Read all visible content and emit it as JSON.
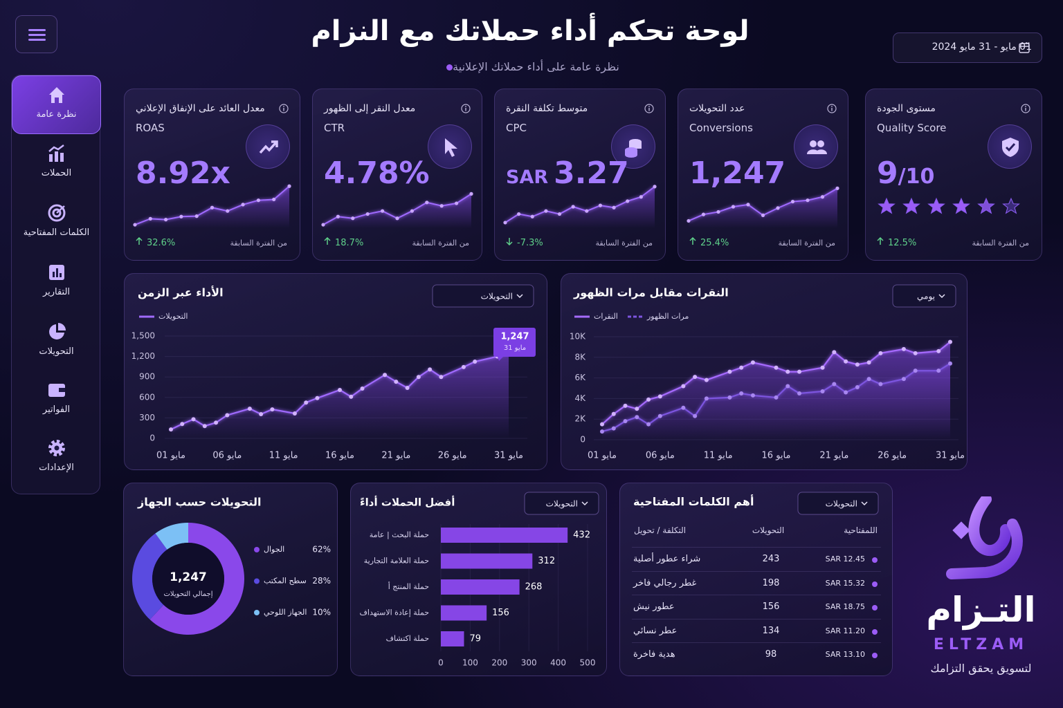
{
  "header": {
    "title": "لوحة تحكم أداء حملاتك مع النزام",
    "subtitle": "نظرة عامة على أداء حملاتك الإعلانية",
    "date_range": "01 مايو - 31 مايو 2024"
  },
  "sidebar": {
    "items": [
      "نظرة عامة",
      "الحملات",
      "الكلمات المفتاحية",
      "التقارير",
      "التحويلات",
      "الفواتير",
      "الإعدادات"
    ],
    "active": 0
  },
  "kpi_note": "من الفترة السابقة",
  "kpis": [
    {
      "label": "معدل العائد على الإنفاق الإعلاني",
      "label_en": "ROAS",
      "value": "8.92x",
      "change": "32.6%",
      "spark": {
        "values": [
          8,
          22,
          20,
          27,
          28,
          48,
          40,
          55,
          65,
          67,
          98
        ],
        "ylim": [
          0,
          100
        ]
      }
    },
    {
      "label": "معدل النقر إلى الظهور",
      "label_en": "CTR",
      "value": "4.78%",
      "change": "18.7%",
      "spark": {
        "values": [
          8,
          27,
          23,
          33,
          40,
          23,
          40,
          60,
          52,
          58,
          80
        ],
        "ylim": [
          0,
          100
        ]
      }
    },
    {
      "label": "متوسط تكلفة النقرة",
      "label_en": "CPC",
      "prefix": "SAR",
      "value": "3.27",
      "change": "-7.3%",
      "spark": {
        "values": [
          13,
          33,
          27,
          40,
          33,
          50,
          40,
          53,
          48,
          63,
          73,
          97
        ],
        "ylim": [
          0,
          100
        ]
      }
    },
    {
      "label": "عدد التحويلات",
      "label_en": "Conversions",
      "value": "1,247",
      "change": "25.4%",
      "spark": {
        "values": [
          17,
          32,
          38,
          50,
          55,
          30,
          47,
          62,
          65,
          73,
          93
        ],
        "ylim": [
          0,
          100
        ]
      }
    },
    {
      "label": "مستوى الجودة",
      "label_en": "Quality Score",
      "value": "9",
      "suffix": "/10",
      "change": "12.5%"
    }
  ],
  "chart_data": [
    {
      "type": "line",
      "title": "الأداء عبر الزمن",
      "dropdown": "التحويلات",
      "x": [
        1,
        2,
        3,
        4,
        5,
        6,
        8,
        9,
        10,
        12,
        13,
        14,
        16,
        17,
        18,
        20,
        21,
        22,
        23,
        24,
        25,
        27,
        28,
        30,
        31
      ],
      "xlim": [
        1,
        31
      ],
      "xticks": [
        {
          "value": 1,
          "label": "01 مايو"
        },
        {
          "value": 6,
          "label": "06 مايو"
        },
        {
          "value": 11,
          "label": "11 مايو"
        },
        {
          "value": 16,
          "label": "16 مايو"
        },
        {
          "value": 21,
          "label": "21 مايو"
        },
        {
          "value": 26,
          "label": "26 مايو"
        },
        {
          "value": 31,
          "label": "31 مايو"
        }
      ],
      "ylim": [
        0,
        1500
      ],
      "yticks": [
        0,
        300,
        600,
        900,
        {
          "value": 1200,
          "label": "1,200"
        },
        {
          "value": 1500,
          "label": "1,500"
        }
      ],
      "series": [
        {
          "name": "التحويلات",
          "color": "#a06bff",
          "values": [
            130,
            210,
            280,
            180,
            230,
            340,
            435,
            355,
            425,
            365,
            525,
            590,
            710,
            610,
            730,
            930,
            830,
            740,
            900,
            1010,
            900,
            1045,
            1125,
            1200,
            1247
          ]
        }
      ],
      "annotation": {
        "text": "1,247",
        "subtext": "31 مايو"
      }
    },
    {
      "type": "line",
      "title": "النقرات مقابل مرات الظهور",
      "dropdown": "يومي",
      "x": [
        1,
        2,
        3,
        4,
        5,
        6,
        8,
        9,
        10,
        12,
        13,
        14,
        16,
        17,
        18,
        20,
        21,
        22,
        23,
        24,
        25,
        27,
        28,
        30,
        31
      ],
      "xlim": [
        1,
        31
      ],
      "xticks": [
        {
          "value": 1,
          "label": "01 مايو"
        },
        {
          "value": 6,
          "label": "06 مايو"
        },
        {
          "value": 11,
          "label": "11 مايو"
        },
        {
          "value": 16,
          "label": "16 مايو"
        },
        {
          "value": 21,
          "label": "21 مايو"
        },
        {
          "value": 26,
          "label": "26 مايو"
        },
        {
          "value": 31,
          "label": "31 مايو"
        }
      ],
      "ylim": [
        0,
        10000
      ],
      "yticks": [
        0,
        {
          "value": 2000,
          "label": "2K"
        },
        {
          "value": 4000,
          "label": "4K"
        },
        {
          "value": 6000,
          "label": "6K"
        },
        {
          "value": 8000,
          "label": "8K"
        },
        {
          "value": 10000,
          "label": "10K"
        }
      ],
      "series": [
        {
          "name": "النقرات",
          "color": "#a66bff",
          "values": [
            1500,
            2500,
            3300,
            3000,
            3900,
            4200,
            5200,
            6100,
            5800,
            6600,
            7000,
            7500,
            7000,
            6600,
            6600,
            7000,
            8500,
            7600,
            7300,
            7500,
            8400,
            8800,
            8400,
            8600,
            9500
          ]
        },
        {
          "name": "مرات الظهور",
          "color": "#7d55e0",
          "values": [
            800,
            1100,
            1800,
            2200,
            1500,
            2300,
            3100,
            2300,
            4000,
            4100,
            4500,
            4300,
            4100,
            5200,
            4500,
            4700,
            5400,
            4600,
            5100,
            5900,
            5400,
            5900,
            6700,
            6700,
            7400
          ]
        }
      ]
    },
    {
      "type": "pie",
      "title": "التحويلات حسب الجهاز",
      "center_value": "1,247",
      "center_label": "إجمالي التحويلات",
      "categories": [
        "الجوال",
        "سطح المكتب",
        "الجهاز اللوحي"
      ],
      "values": [
        62,
        28,
        10
      ],
      "value_labels": [
        "62%",
        "28%",
        "10%"
      ],
      "colors": [
        "#8a48ea",
        "#5a4be0",
        "#7cc0f5"
      ]
    },
    {
      "type": "bar",
      "title": "أفضل الحملات أداءً",
      "dropdown": "التحويلات",
      "categories": [
        "حملة البحث | عامة",
        "حملة العلامة التجارية",
        "حملة المنتج أ",
        "حملة إعادة الاستهداف",
        "حملة اكتشاف"
      ],
      "values": [
        432,
        312,
        268,
        156,
        79
      ],
      "color": "#8646e6",
      "xlim": [
        0,
        500
      ],
      "xticks": [
        0,
        100,
        200,
        300,
        400,
        500
      ]
    }
  ],
  "keywords_table": {
    "title": "أهم الكلمات المفتاحية",
    "dropdown": "التحويلات",
    "columns": [
      "التكلفة / تحويل",
      "التحويلات",
      "اللمفتاحية"
    ],
    "rows": [
      [
        "شراء عطور أصلية",
        243,
        "SAR 12.45"
      ],
      [
        "غطر رجالي فاخر",
        198,
        "SAR 15.32"
      ],
      [
        "عطور نيش",
        156,
        "SAR 18.75"
      ],
      [
        "عطر نسائي",
        134,
        "SAR 11.20"
      ],
      [
        "هدية فاخرة",
        98,
        "SAR 13.10"
      ]
    ]
  },
  "brand": {
    "name": "التـزام",
    "latin": "ELTZAM",
    "tagline": "لتسويق يحقق التزامك"
  }
}
